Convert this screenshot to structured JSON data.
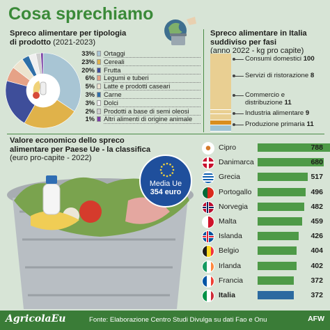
{
  "title": "Cosa sprechiamo",
  "colors": {
    "accent": "#3a8a38",
    "eu_blue": "#1f4f9c",
    "bar_green": "#4e9a47",
    "italy_bar": "#2c6aa0"
  },
  "chart_data": [
    {
      "type": "pie",
      "title_line1": "Spreco alimentare per tipologia",
      "title_line2": "di prodotto",
      "subtitle": "(2021-2023)",
      "slices": [
        {
          "label": "Ortaggi",
          "pct_label": "33%",
          "value": 33,
          "color": "#a8c5d4"
        },
        {
          "label": "Cereali",
          "pct_label": "23%",
          "value": 23,
          "color": "#e0b24a"
        },
        {
          "label": "Frutta",
          "pct_label": "20%",
          "value": 20,
          "color": "#3e4e9a"
        },
        {
          "label": "Legumi e tuberi",
          "pct_label": "6%",
          "value": 6,
          "color": "#e6a287"
        },
        {
          "label": "Latte e prodotti caseari",
          "pct_label": "5%",
          "value": 5,
          "color": "#ece4cf"
        },
        {
          "label": "Carne",
          "pct_label": "3%",
          "value": 3,
          "color": "#2f6fa8"
        },
        {
          "label": "Dolci",
          "pct_label": "3%",
          "value": 3,
          "color": "#f0f0f0"
        },
        {
          "label": "Prodotti a base di semi oleosi",
          "pct_label": "2%",
          "value": 2,
          "color": "#cfcfcf"
        },
        {
          "label": "Altri alimenti di origine animale",
          "pct_label": "1%",
          "value": 1,
          "color": "#7a3fa5"
        }
      ]
    },
    {
      "type": "bar",
      "stacked": true,
      "title_line1": "Spreco alimentare in Italia",
      "title_line2": "suddiviso per fasi",
      "subtitle": "(anno 2022 - kg pro capite)",
      "segments": [
        {
          "label": "Consumi domestici",
          "value": 100,
          "color": "#e9cf92"
        },
        {
          "label": "Servizi di ristorazione",
          "value": 8,
          "color": "#e9cf92"
        },
        {
          "label": "Commercio e distribuzione",
          "value": 11,
          "color": "#e9cf92"
        },
        {
          "label": "Industria alimentare",
          "value": 9,
          "color": "#d98e1f"
        },
        {
          "label": "Produzione primaria",
          "value": 11,
          "color": "#9fc3d3"
        }
      ]
    },
    {
      "type": "bar",
      "orientation": "horizontal",
      "title_line1": "Valore economico dello spreco",
      "title_line2": "alimentare per Paese Ue - la classifica",
      "subtitle": "(euro pro-capite - 2022)",
      "xlim": [
        0,
        788
      ],
      "categories": [
        "Cipro",
        "Danimarca",
        "Grecia",
        "Portogallo",
        "Norvegia",
        "Malta",
        "Islanda",
        "Belgio",
        "Irlanda",
        "Francia",
        "Italia"
      ],
      "values": [
        788,
        680,
        517,
        496,
        482,
        459,
        426,
        404,
        402,
        372,
        372
      ],
      "highlight": "Italia"
    }
  ],
  "media": {
    "line1": "Media Ue",
    "line2": "354 euro"
  },
  "footer": {
    "logo": "AgricolaEu",
    "source": "Fonte: Elaborazione Centro Studi Divulga su dati Fao e Onu",
    "agency": "AFW"
  }
}
